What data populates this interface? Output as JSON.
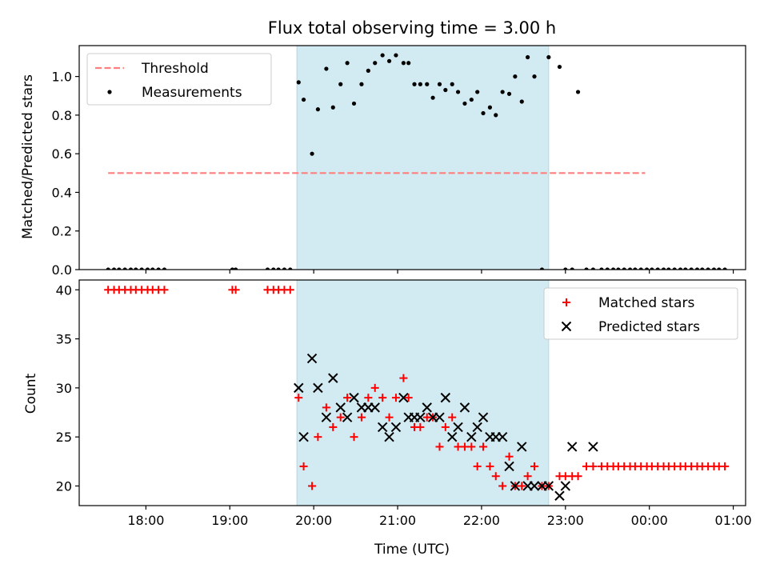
{
  "chart_data": [
    {
      "type": "scatter",
      "title": "Flux total observing time = 3.00 h",
      "xlabel": "",
      "ylabel": "Matched/Predicted stars",
      "ylim": [
        0,
        1.16
      ],
      "yticks": [
        "0.0",
        "0.2",
        "0.4",
        "0.6",
        "0.8",
        "1.0"
      ],
      "xticks": [
        {
          "t": 18.0,
          "label": ""
        },
        {
          "t": 19.0,
          "label": ""
        },
        {
          "t": 20.0,
          "label": ""
        },
        {
          "t": 21.0,
          "label": ""
        },
        {
          "t": 22.0,
          "label": ""
        },
        {
          "t": 23.0,
          "label": ""
        },
        {
          "t": 24.0,
          "label": ""
        },
        {
          "t": 25.0,
          "label": ""
        }
      ],
      "legend_position": "top-left",
      "shaded_interval": {
        "from": 19.8,
        "to": 22.8,
        "color": "#add8e6"
      },
      "series": [
        {
          "name": "Threshold",
          "kind": "dashed-line",
          "color": "#ff7f7f",
          "x": [
            17.55,
            23.95
          ],
          "y": [
            0.5,
            0.5
          ]
        },
        {
          "name": "Measurements",
          "kind": "dots",
          "color": "#000000",
          "x": [
            17.55,
            17.62,
            17.68,
            17.75,
            17.82,
            17.88,
            17.95,
            18.02,
            18.08,
            18.15,
            18.22,
            19.03,
            19.07,
            19.45,
            19.52,
            19.58,
            19.65,
            19.72,
            19.82,
            19.88,
            19.98,
            20.05,
            20.15,
            20.23,
            20.32,
            20.4,
            20.48,
            20.57,
            20.65,
            20.73,
            20.82,
            20.9,
            20.98,
            21.07,
            21.13,
            21.2,
            21.27,
            21.35,
            21.42,
            21.5,
            21.57,
            21.65,
            21.72,
            21.8,
            21.88,
            21.95,
            22.02,
            22.1,
            22.17,
            22.25,
            22.33,
            22.4,
            22.48,
            22.55,
            22.63,
            22.72,
            22.8,
            22.93,
            23.0,
            23.08,
            23.15,
            23.25,
            23.33,
            23.43,
            23.5,
            23.57,
            23.63,
            23.7,
            23.77,
            23.83,
            23.9,
            23.97,
            24.03,
            24.1,
            24.17,
            24.23,
            24.3,
            24.37,
            24.43,
            24.5,
            24.57,
            24.63,
            24.7,
            24.77,
            24.83,
            24.9
          ],
          "y": [
            0,
            0,
            0,
            0,
            0,
            0,
            0,
            0,
            0,
            0,
            0,
            0,
            0,
            0,
            0,
            0,
            0,
            0,
            0.97,
            0.88,
            0.6,
            0.83,
            1.04,
            0.84,
            0.96,
            1.07,
            0.86,
            0.96,
            1.03,
            1.07,
            1.11,
            1.08,
            1.11,
            1.07,
            1.07,
            0.96,
            0.96,
            0.96,
            0.89,
            0.96,
            0.93,
            0.96,
            0.92,
            0.86,
            0.88,
            0.92,
            0.81,
            0.84,
            0.8,
            0.92,
            0.91,
            1.0,
            0.87,
            1.1,
            1.0,
            0.0,
            1.1,
            1.05,
            0,
            0,
            0.92,
            0,
            0,
            0,
            0,
            0,
            0,
            0,
            0,
            0,
            0,
            0,
            0,
            0,
            0,
            0,
            0,
            0,
            0,
            0,
            0,
            0,
            0,
            0,
            0,
            0
          ]
        }
      ]
    },
    {
      "type": "scatter",
      "title": "",
      "xlabel": "Time (UTC)",
      "ylabel": "Count",
      "ylim": [
        18,
        41
      ],
      "yticks": [
        "20",
        "25",
        "30",
        "35",
        "40"
      ],
      "xticks": [
        {
          "t": 18.0,
          "label": "18:00"
        },
        {
          "t": 19.0,
          "label": "19:00"
        },
        {
          "t": 20.0,
          "label": "20:00"
        },
        {
          "t": 21.0,
          "label": "21:00"
        },
        {
          "t": 22.0,
          "label": "22:00"
        },
        {
          "t": 23.0,
          "label": "23:00"
        },
        {
          "t": 24.0,
          "label": "00:00"
        },
        {
          "t": 25.0,
          "label": "01:00"
        }
      ],
      "legend_position": "top-right",
      "shaded_interval": {
        "from": 19.8,
        "to": 22.8,
        "color": "#add8e6"
      },
      "series": [
        {
          "name": "Matched stars",
          "kind": "plus",
          "color": "#ff0000",
          "x": [
            17.55,
            17.62,
            17.68,
            17.75,
            17.82,
            17.88,
            17.95,
            18.02,
            18.08,
            18.15,
            18.22,
            19.03,
            19.07,
            19.45,
            19.52,
            19.58,
            19.65,
            19.72,
            19.82,
            19.88,
            19.98,
            20.05,
            20.15,
            20.23,
            20.32,
            20.4,
            20.48,
            20.57,
            20.65,
            20.73,
            20.82,
            20.9,
            20.98,
            21.07,
            21.13,
            21.2,
            21.27,
            21.35,
            21.42,
            21.5,
            21.57,
            21.65,
            21.72,
            21.8,
            21.88,
            21.95,
            22.02,
            22.1,
            22.17,
            22.25,
            22.33,
            22.4,
            22.48,
            22.55,
            22.63,
            22.72,
            22.8,
            22.93,
            23.0,
            23.08,
            23.15,
            23.25,
            23.33,
            23.43,
            23.5,
            23.57,
            23.63,
            23.7,
            23.77,
            23.83,
            23.9,
            23.97,
            24.03,
            24.1,
            24.17,
            24.23,
            24.3,
            24.37,
            24.43,
            24.5,
            24.57,
            24.63,
            24.7,
            24.77,
            24.83,
            24.9
          ],
          "y": [
            40,
            40,
            40,
            40,
            40,
            40,
            40,
            40,
            40,
            40,
            40,
            40,
            40,
            40,
            40,
            40,
            40,
            40,
            29,
            22,
            20,
            25,
            28,
            26,
            27,
            29,
            25,
            27,
            29,
            30,
            29,
            27,
            29,
            31,
            29,
            26,
            26,
            27,
            27,
            24,
            26,
            27,
            24,
            24,
            24,
            22,
            24,
            22,
            21,
            20,
            23,
            20,
            20,
            21,
            22,
            20,
            20,
            21,
            21,
            21,
            21,
            22,
            22,
            22,
            22,
            22,
            22,
            22,
            22,
            22,
            22,
            22,
            22,
            22,
            22,
            22,
            22,
            22,
            22,
            22,
            22,
            22,
            22,
            22,
            22,
            22
          ]
        },
        {
          "name": "Predicted stars",
          "kind": "cross",
          "color": "#000000",
          "x": [
            19.82,
            19.88,
            19.98,
            20.05,
            20.15,
            20.23,
            20.32,
            20.4,
            20.48,
            20.57,
            20.65,
            20.73,
            20.82,
            20.9,
            20.98,
            21.07,
            21.13,
            21.2,
            21.27,
            21.35,
            21.42,
            21.5,
            21.57,
            21.65,
            21.72,
            21.8,
            21.88,
            21.95,
            22.02,
            22.1,
            22.17,
            22.25,
            22.33,
            22.4,
            22.48,
            22.55,
            22.63,
            22.72,
            22.8,
            22.93,
            23.0,
            23.08,
            23.33
          ],
          "y": [
            30,
            25,
            33,
            30,
            27,
            31,
            28,
            27,
            29,
            28,
            28,
            28,
            26,
            25,
            26,
            29,
            27,
            27,
            27,
            28,
            27,
            27,
            29,
            25,
            26,
            28,
            25,
            26,
            27,
            25,
            25,
            25,
            22,
            20,
            24,
            20,
            20,
            20,
            20,
            19,
            20,
            24,
            24
          ]
        }
      ]
    }
  ]
}
